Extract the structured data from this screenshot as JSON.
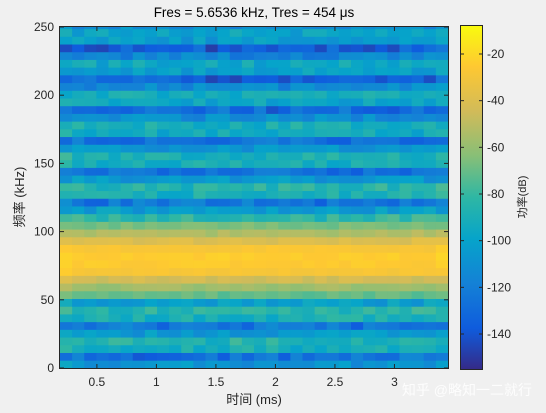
{
  "chart_data": {
    "type": "heatmap",
    "title": "Fres = 5.6536 kHz, Tres = 454 μs",
    "xlabel": "时间 (ms)",
    "ylabel": "频率 (kHz)",
    "xlim": [
      0.19,
      3.45
    ],
    "ylim": [
      0,
      250
    ],
    "x_ticks": [
      0.5,
      1,
      1.5,
      2,
      2.5,
      3
    ],
    "x_tick_labels": [
      "0.5",
      "1",
      "1.5",
      "2",
      "2.5",
      "3"
    ],
    "y_ticks": [
      0,
      50,
      100,
      150,
      200,
      250
    ],
    "y_tick_labels": [
      "0",
      "50",
      "100",
      "150",
      "200",
      "250"
    ],
    "colorbar": {
      "label": "功率(dB)",
      "range": [
        -155,
        -8
      ],
      "ticks": [
        -20,
        -40,
        -60,
        -80,
        -100,
        -120,
        -140
      ],
      "tick_labels": [
        "-20",
        "-40",
        "-60",
        "-80",
        "-100",
        "-120",
        "-140"
      ],
      "colormap": "parula"
    },
    "signal": {
      "center_frequency_khz": 80,
      "peak_power_db": -20,
      "time_bins": 32,
      "frequency_bin_khz": 5.6536
    }
  },
  "watermark": "知乎 @略知一二就行"
}
